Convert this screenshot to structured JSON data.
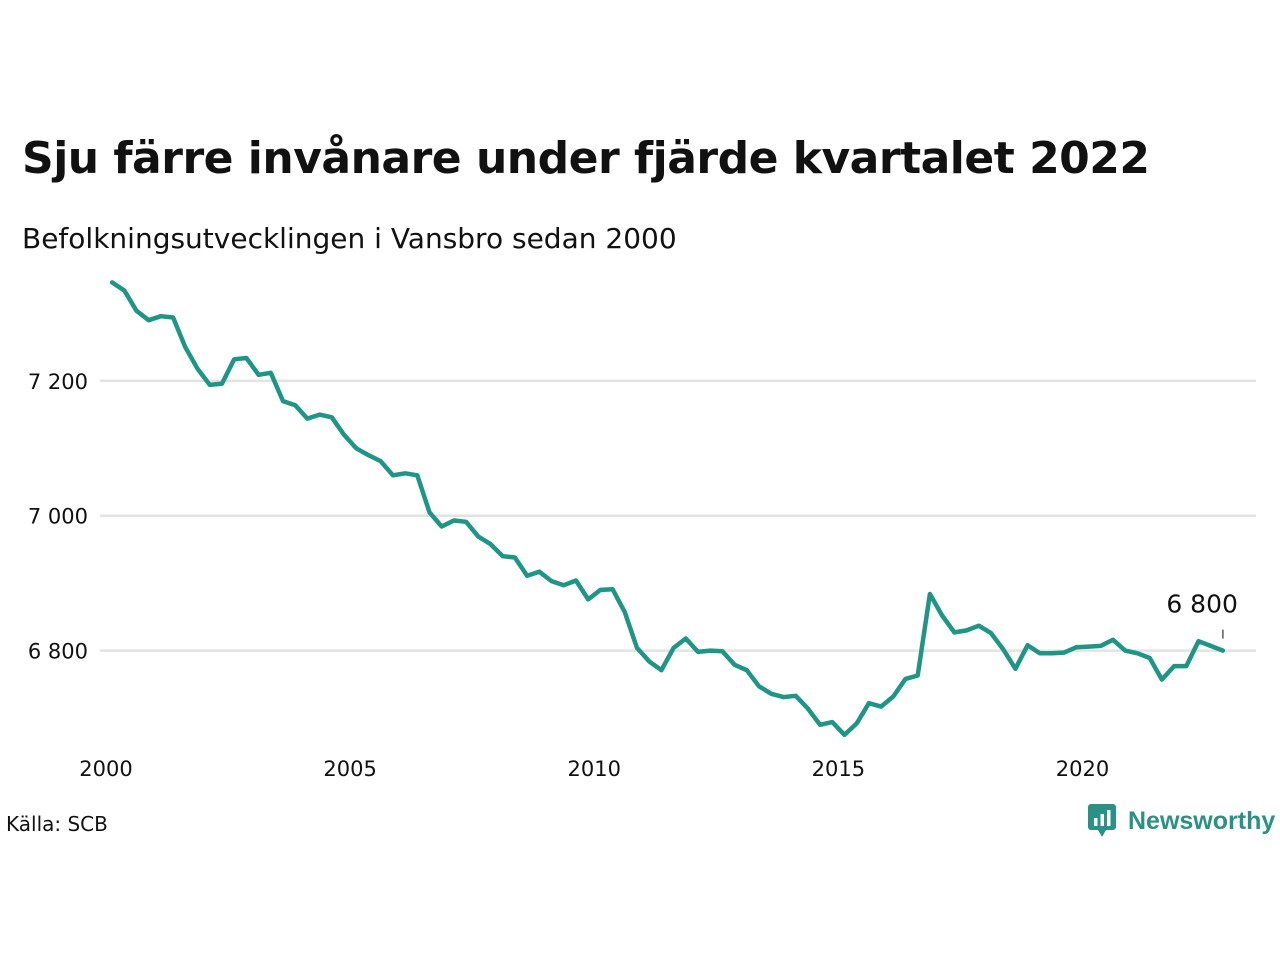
{
  "header": {
    "title": "Sju färre invånare under fjärde kvartalet 2022",
    "subtitle": "Befolkningsutvecklingen i Vansbro sedan 2000"
  },
  "footer": {
    "source": "Källa: SCB",
    "brand_name": "Newsworthy",
    "brand_icon": "newsworthy-logo-icon"
  },
  "colors": {
    "line": "#1f9585",
    "grid": "#e3e3e3",
    "brand": "#2a9184"
  },
  "chart_data": {
    "type": "line",
    "x_start": "2000 Q1",
    "frequency": "quarterly",
    "x_ticks": [
      2000,
      2005,
      2010,
      2015,
      2020
    ],
    "x_tick_labels": [
      "2000",
      "2005",
      "2010",
      "2015",
      "2020"
    ],
    "y_ticks": [
      6800,
      7000,
      7200
    ],
    "y_tick_labels": [
      "6 800",
      "7 000",
      "7 200"
    ],
    "ylim": [
      6660,
      7360
    ],
    "xlim": [
      2000,
      2023
    ],
    "grid": "horizontal",
    "series": [
      {
        "values": [
          7346,
          7334,
          7304,
          7290,
          7296,
          7294,
          7250,
          7218,
          7194,
          7196,
          7232,
          7234,
          7209,
          7212,
          7170,
          7164,
          7144,
          7150,
          7146,
          7120,
          7100,
          7090,
          7081,
          7060,
          7063,
          7060,
          7005,
          6984,
          6993,
          6991,
          6969,
          6958,
          6940,
          6938,
          6911,
          6917,
          6903,
          6897,
          6904,
          6876,
          6890,
          6891,
          6857,
          6804,
          6784,
          6771,
          6804,
          6818,
          6798,
          6800,
          6799,
          6779,
          6771,
          6747,
          6736,
          6731,
          6733,
          6714,
          6690,
          6694,
          6675,
          6692,
          6722,
          6717,
          6732,
          6758,
          6763,
          6884,
          6852,
          6827,
          6830,
          6837,
          6826,
          6802,
          6773,
          6808,
          6796,
          6796,
          6797,
          6805,
          6806,
          6807,
          6816,
          6800,
          6796,
          6789,
          6757,
          6777,
          6777,
          6814,
          6807,
          6800
        ]
      }
    ],
    "end_label": "6 800"
  }
}
